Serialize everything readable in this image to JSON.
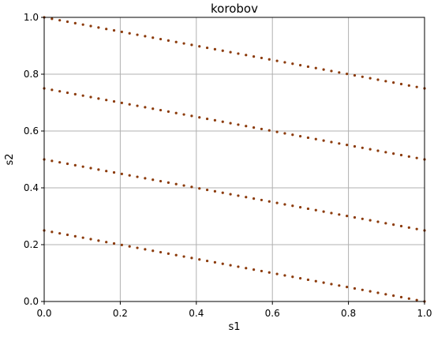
{
  "chart_data": {
    "type": "scatter",
    "title": "korobov",
    "xlabel": "s1",
    "ylabel": "s2",
    "xlim": [
      0.0,
      1.0
    ],
    "ylim": [
      0.0,
      1.0
    ],
    "xticks": [
      "0.0",
      "0.2",
      "0.4",
      "0.6",
      "0.8",
      "1.0"
    ],
    "yticks": [
      "0.0",
      "0.2",
      "0.4",
      "0.6",
      "0.8",
      "1.0"
    ],
    "grid": true,
    "point_color": "#8b3a0a",
    "series": [
      {
        "x_start": 0.0,
        "y_start": 1.0,
        "x_end": 1.0,
        "y_end": 0.75,
        "count": 50
      },
      {
        "x_start": 0.0,
        "y_start": 0.75,
        "x_end": 1.0,
        "y_end": 0.5,
        "count": 50
      },
      {
        "x_start": 0.0,
        "y_start": 0.5,
        "x_end": 1.0,
        "y_end": 0.25,
        "count": 50
      },
      {
        "x_start": 0.0,
        "y_start": 0.25,
        "x_end": 1.0,
        "y_end": 0.0,
        "count": 50
      }
    ]
  }
}
